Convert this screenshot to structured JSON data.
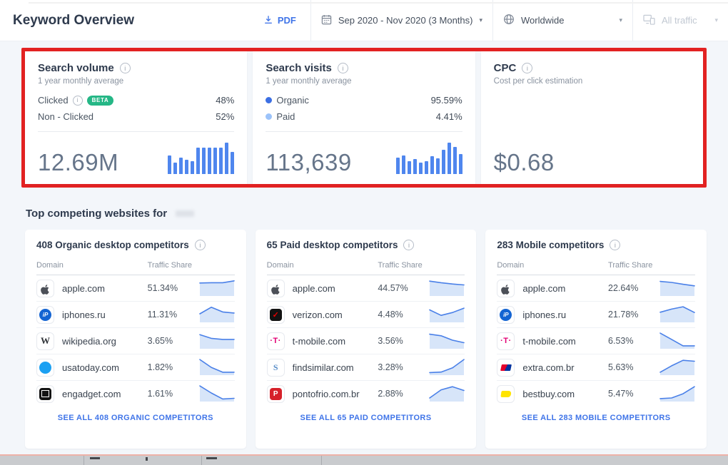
{
  "header": {
    "title": "Keyword Overview",
    "pdf_label": "PDF",
    "date_range": "Sep 2020 - Nov 2020 (3 Months)",
    "region": "Worldwide",
    "traffic_filter": "All traffic"
  },
  "colors": {
    "accent_blue": "#3f74e8",
    "chart_bar": "#4f86ee",
    "spark_line": "#4a80e8",
    "spark_fill": "#d7e5f9",
    "beta_green": "#25b786",
    "highlight_red": "#e32222",
    "organic_dot": "#3c6fe3",
    "paid_dot": "#9cc3fa"
  },
  "metrics": {
    "search_volume": {
      "title": "Search volume",
      "subtitle": "1 year monthly average",
      "rows": [
        {
          "label": "Clicked",
          "badge": "BETA",
          "value": "48%"
        },
        {
          "label": "Non - Clicked",
          "value": "52%"
        }
      ],
      "total": "12.69M",
      "bars": [
        58,
        36,
        52,
        46,
        40,
        84,
        84,
        84,
        84,
        84,
        100,
        70
      ]
    },
    "search_visits": {
      "title": "Search visits",
      "subtitle": "1 year monthly average",
      "rows": [
        {
          "label": "Organic",
          "value": "95.59%",
          "dot_color": "#3c6fe3"
        },
        {
          "label": "Paid",
          "value": "4.41%",
          "dot_color": "#9cc3fa"
        }
      ],
      "total": "113,639",
      "bars": [
        52,
        60,
        40,
        48,
        36,
        42,
        56,
        50,
        78,
        100,
        86,
        64
      ]
    },
    "cpc": {
      "title": "CPC",
      "subtitle": "Cost per click estimation",
      "total": "$0.68"
    }
  },
  "competitors": {
    "section_title": "Top competing websites for",
    "table_headers": {
      "domain": "Domain",
      "share": "Traffic Share"
    },
    "cards": [
      {
        "title": "408 Organic desktop competitors",
        "see_all": "SEE ALL 408 ORGANIC COMPETITORS",
        "rows": [
          {
            "domain": "apple.com",
            "share": "51.34%",
            "icon": "apple",
            "trend": [
              78,
              80,
              80,
              92
            ]
          },
          {
            "domain": "iphones.ru",
            "share": "11.31%",
            "icon": "iphones-ru",
            "trend": [
              50,
              92,
              62,
              55
            ]
          },
          {
            "domain": "wikipedia.org",
            "share": "3.65%",
            "icon": "wikipedia",
            "trend": [
              85,
              62,
              55,
              55
            ]
          },
          {
            "domain": "usatoday.com",
            "share": "1.82%",
            "icon": "usatoday",
            "trend": [
              95,
              45,
              14,
              14
            ]
          },
          {
            "domain": "engadget.com",
            "share": "1.61%",
            "icon": "engadget",
            "trend": [
              95,
              50,
              12,
              16
            ]
          }
        ]
      },
      {
        "title": "65 Paid desktop competitors",
        "see_all": "SEE ALL 65 PAID COMPETITORS",
        "rows": [
          {
            "domain": "apple.com",
            "share": "44.57%",
            "icon": "apple",
            "trend": [
              90,
              80,
              72,
              66
            ]
          },
          {
            "domain": "verizon.com",
            "share": "4.48%",
            "icon": "verizon",
            "trend": [
              75,
              40,
              58,
              86
            ]
          },
          {
            "domain": "t-mobile.com",
            "share": "3.56%",
            "icon": "t-mobile",
            "trend": [
              88,
              78,
              50,
              34
            ]
          },
          {
            "domain": "findsimilar.com",
            "share": "3.28%",
            "icon": "findsimilar",
            "trend": [
              12,
              15,
              42,
              95
            ]
          },
          {
            "domain": "pontofrio.com.br",
            "share": "2.88%",
            "icon": "pontofrio",
            "trend": [
              18,
              70,
              90,
              66
            ]
          }
        ]
      },
      {
        "title": "283 Mobile competitors",
        "see_all": "SEE ALL 283 MOBILE COMPETITORS",
        "rows": [
          {
            "domain": "apple.com",
            "share": "22.64%",
            "icon": "apple",
            "trend": [
              88,
              82,
              70,
              60
            ]
          },
          {
            "domain": "iphones.ru",
            "share": "21.78%",
            "icon": "iphones-ru",
            "trend": [
              60,
              80,
              95,
              58
            ]
          },
          {
            "domain": "t-mobile.com",
            "share": "6.53%",
            "icon": "t-mobile",
            "trend": [
              95,
              55,
              14,
              14
            ]
          },
          {
            "domain": "extra.com.br",
            "share": "5.63%",
            "icon": "extra",
            "trend": [
              14,
              55,
              90,
              84
            ]
          },
          {
            "domain": "bestbuy.com",
            "share": "5.47%",
            "icon": "bestbuy",
            "trend": [
              14,
              18,
              45,
              90
            ]
          }
        ]
      }
    ]
  }
}
